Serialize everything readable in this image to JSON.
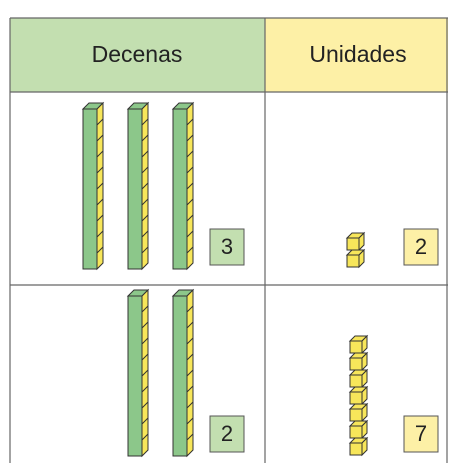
{
  "table": {
    "header": [
      "Decenas",
      "Unidades"
    ],
    "rows": [
      [
        3,
        2
      ],
      [
        2,
        7
      ]
    ]
  }
}
